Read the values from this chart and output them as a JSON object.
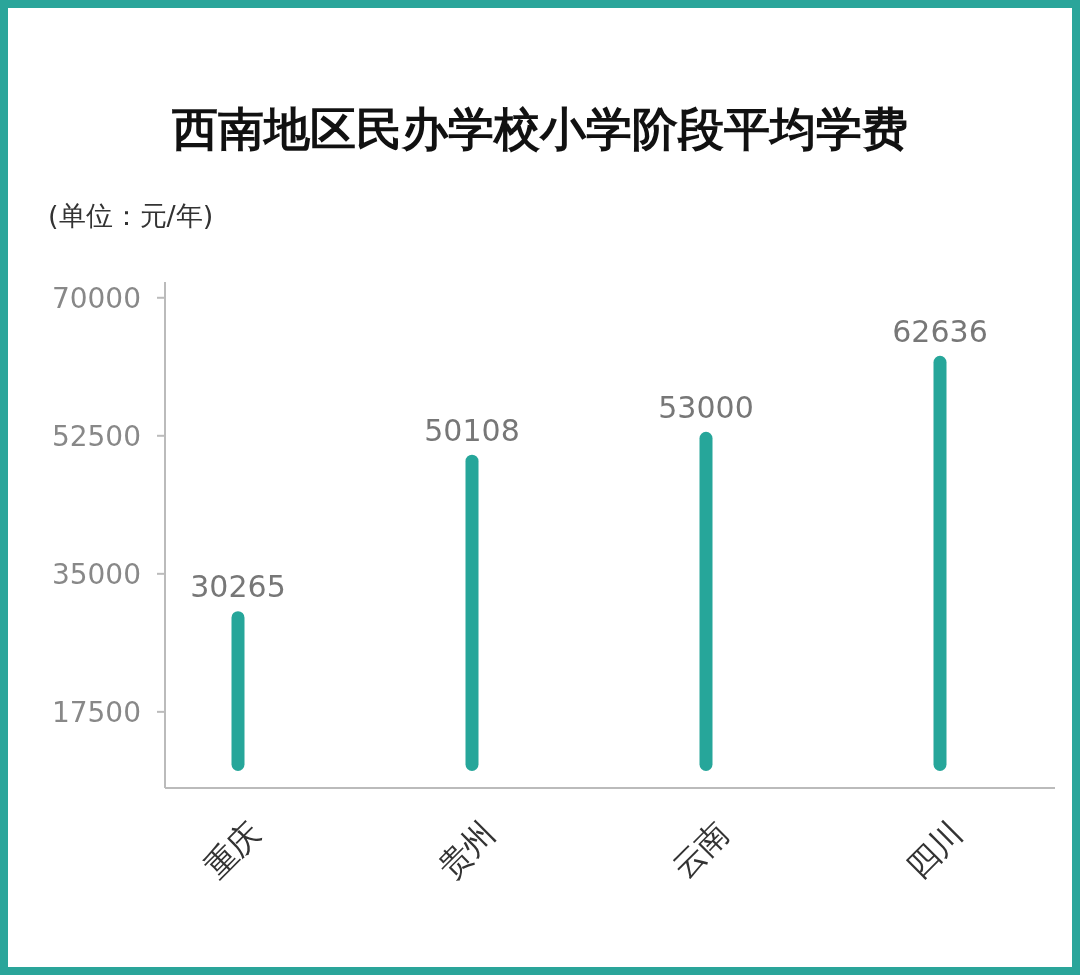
{
  "chart_data": {
    "type": "bar",
    "title": "西南地区民办学校小学阶段平均学费",
    "ylabel": "(单位：元/年)",
    "categories": [
      "重庆",
      "贵州",
      "云南",
      "四川"
    ],
    "values": [
      30265,
      50108,
      53000,
      62636
    ],
    "color": "#26a69a",
    "ylim": [
      10000,
      72000
    ],
    "yticks": [
      17500,
      35000,
      52500,
      70000
    ],
    "data_labels": true,
    "grid": false
  }
}
